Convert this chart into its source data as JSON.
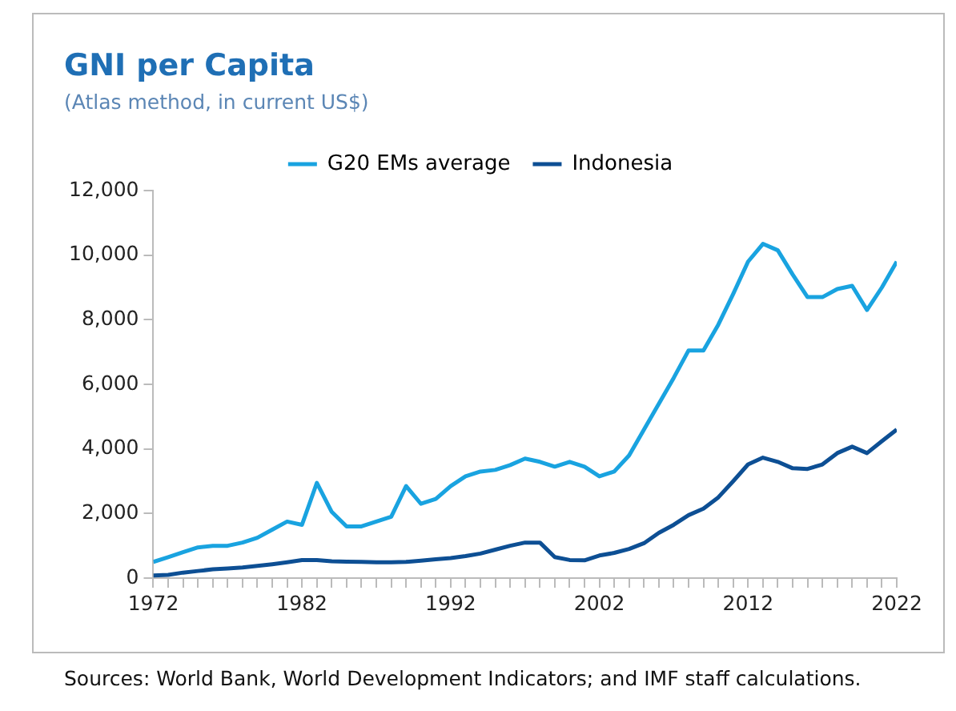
{
  "chart_data": {
    "type": "line",
    "title": "GNI per Capita",
    "subtitle": "(Atlas method, in current US$)",
    "annotations": [
      "Sources: World Bank, World Development Indicators; and IMF staff calculations."
    ],
    "x": [
      1972,
      1973,
      1974,
      1975,
      1976,
      1977,
      1978,
      1979,
      1980,
      1981,
      1982,
      1983,
      1984,
      1985,
      1986,
      1987,
      1988,
      1989,
      1990,
      1991,
      1992,
      1993,
      1994,
      1995,
      1996,
      1997,
      1998,
      1999,
      2000,
      2001,
      2002,
      2003,
      2004,
      2005,
      2006,
      2007,
      2008,
      2009,
      2010,
      2011,
      2012,
      2013,
      2014,
      2015,
      2016,
      2017,
      2018,
      2019,
      2020,
      2021,
      2022
    ],
    "series": [
      {
        "name": "G20 EMs average",
        "color": "#19a3e0",
        "values": [
          500,
          650,
          800,
          950,
          1000,
          1000,
          1100,
          1250,
          1500,
          1750,
          1650,
          2950,
          2050,
          1600,
          1600,
          1750,
          1900,
          2850,
          2300,
          2450,
          2850,
          3150,
          3300,
          3350,
          3500,
          3700,
          3600,
          3450,
          3600,
          3450,
          3150,
          3300,
          3800,
          4600,
          5400,
          6200,
          7050,
          7050,
          7850,
          8800,
          9800,
          10350,
          10150,
          9400,
          8700,
          8700,
          8950,
          9050,
          8300,
          9000,
          9800
        ]
      },
      {
        "name": "Indonesia",
        "color": "#0d4f94",
        "values": [
          80,
          100,
          170,
          220,
          270,
          300,
          330,
          380,
          430,
          490,
          560,
          560,
          520,
          510,
          500,
          490,
          490,
          500,
          540,
          580,
          620,
          680,
          760,
          880,
          1000,
          1100,
          1100,
          650,
          560,
          550,
          700,
          780,
          900,
          1080,
          1400,
          1650,
          1950,
          2150,
          2500,
          3000,
          3520,
          3730,
          3600,
          3400,
          3380,
          3520,
          3870,
          4070,
          3870,
          4240,
          4600
        ]
      }
    ],
    "xlim": [
      1972,
      2022
    ],
    "xticks": [
      1972,
      1982,
      1992,
      2002,
      2012,
      2022
    ],
    "ylim": [
      0,
      12000
    ],
    "yticks": [
      0,
      {
        "value": 2000,
        "label": "2,000"
      },
      {
        "value": 4000,
        "label": "4,000"
      },
      {
        "value": 6000,
        "label": "6,000"
      },
      {
        "value": 8000,
        "label": "8,000"
      },
      {
        "value": 10000,
        "label": "10,000"
      },
      {
        "value": 12000,
        "label": "12,000"
      }
    ],
    "grid": false,
    "legend": "top",
    "marker": "none",
    "line_style": "solid"
  }
}
